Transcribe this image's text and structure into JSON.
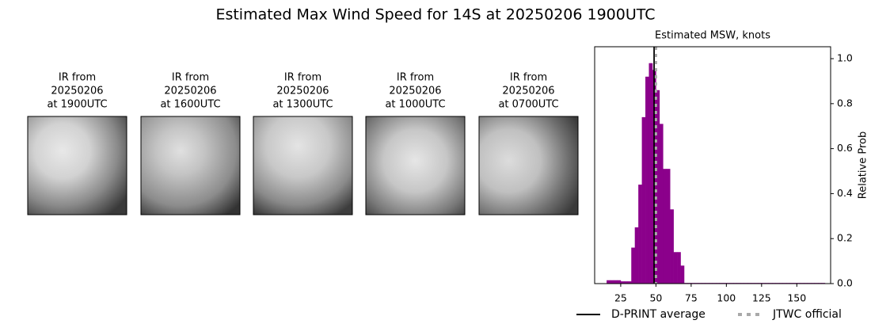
{
  "title": "Estimated Max Wind Speed for 14S at 20250206 1900UTC",
  "panels": [
    {
      "title": [
        "IR from",
        "20250206",
        "at 1900UTC"
      ]
    },
    {
      "title": [
        "IR from",
        "20250206",
        "at 1600UTC"
      ]
    },
    {
      "title": [
        "IR from",
        "20250206",
        "at 1300UTC"
      ]
    },
    {
      "title": [
        "IR from",
        "20250206",
        "at 1000UTC"
      ]
    },
    {
      "title": [
        "IR from",
        "20250206",
        "at 0700UTC"
      ]
    }
  ],
  "chart_data": {
    "type": "histogram",
    "title": "Estimated MSW, knots",
    "y_label": "Relative Prob",
    "color": "#8b008b",
    "bins": [
      15,
      17.5,
      20,
      22.5,
      25,
      27.5,
      30,
      32.5,
      35,
      37.5,
      40,
      42.5,
      45,
      47.5,
      50,
      52.5,
      55,
      57.5,
      60,
      62.5,
      65,
      67.5,
      70,
      72.5,
      75,
      77.5,
      80,
      82.5,
      85,
      87.5,
      90,
      92.5,
      95,
      97.5,
      100,
      102.5,
      105,
      107.5,
      110,
      112.5,
      115,
      117.5,
      120,
      122.5,
      125,
      127.5,
      130,
      132.5,
      135,
      137.5,
      140,
      142.5,
      145,
      147.5,
      150,
      152.5,
      155,
      157.5,
      160,
      162.5,
      165,
      167.5,
      170
    ],
    "values": [
      0.015,
      0.015,
      0.015,
      0.015,
      0.01,
      0.01,
      0.01,
      0.16,
      0.25,
      0.44,
      0.74,
      0.92,
      0.98,
      0.95,
      0.86,
      0.71,
      0.51,
      0.51,
      0.33,
      0.14,
      0.14,
      0.08,
      0.003,
      0.003,
      0.003,
      0.003,
      0.003,
      0.003,
      0.003,
      0.003,
      0.003,
      0.003,
      0.003,
      0.003,
      0.003,
      0.003,
      0.003,
      0.003,
      0.003,
      0.003,
      0.003,
      0.003,
      0.003,
      0.003,
      0.003,
      0.003,
      0.003,
      0.003,
      0.003,
      0.003,
      0.003,
      0.003,
      0.003,
      0.003,
      0.003,
      0.003,
      0.003,
      0.003,
      0.003,
      0.003,
      0.003,
      0.003
    ],
    "xlim": [
      6.5,
      174
    ],
    "xticks": [
      25,
      50,
      75,
      100,
      125,
      150
    ],
    "ylim": [
      0,
      1.053
    ],
    "yticks": [
      {
        "value": 0,
        "label": "0.0"
      },
      0.2,
      0.4,
      0.6,
      0.8,
      {
        "value": 1,
        "label": "1.0"
      }
    ],
    "lines": [
      {
        "name": "D-PRINT average",
        "value": 48.7,
        "color": "#000000",
        "style": "solid"
      },
      {
        "name": "JTWC official",
        "value": 50,
        "color": "#a9a9a9",
        "style": "dotted"
      }
    ]
  }
}
